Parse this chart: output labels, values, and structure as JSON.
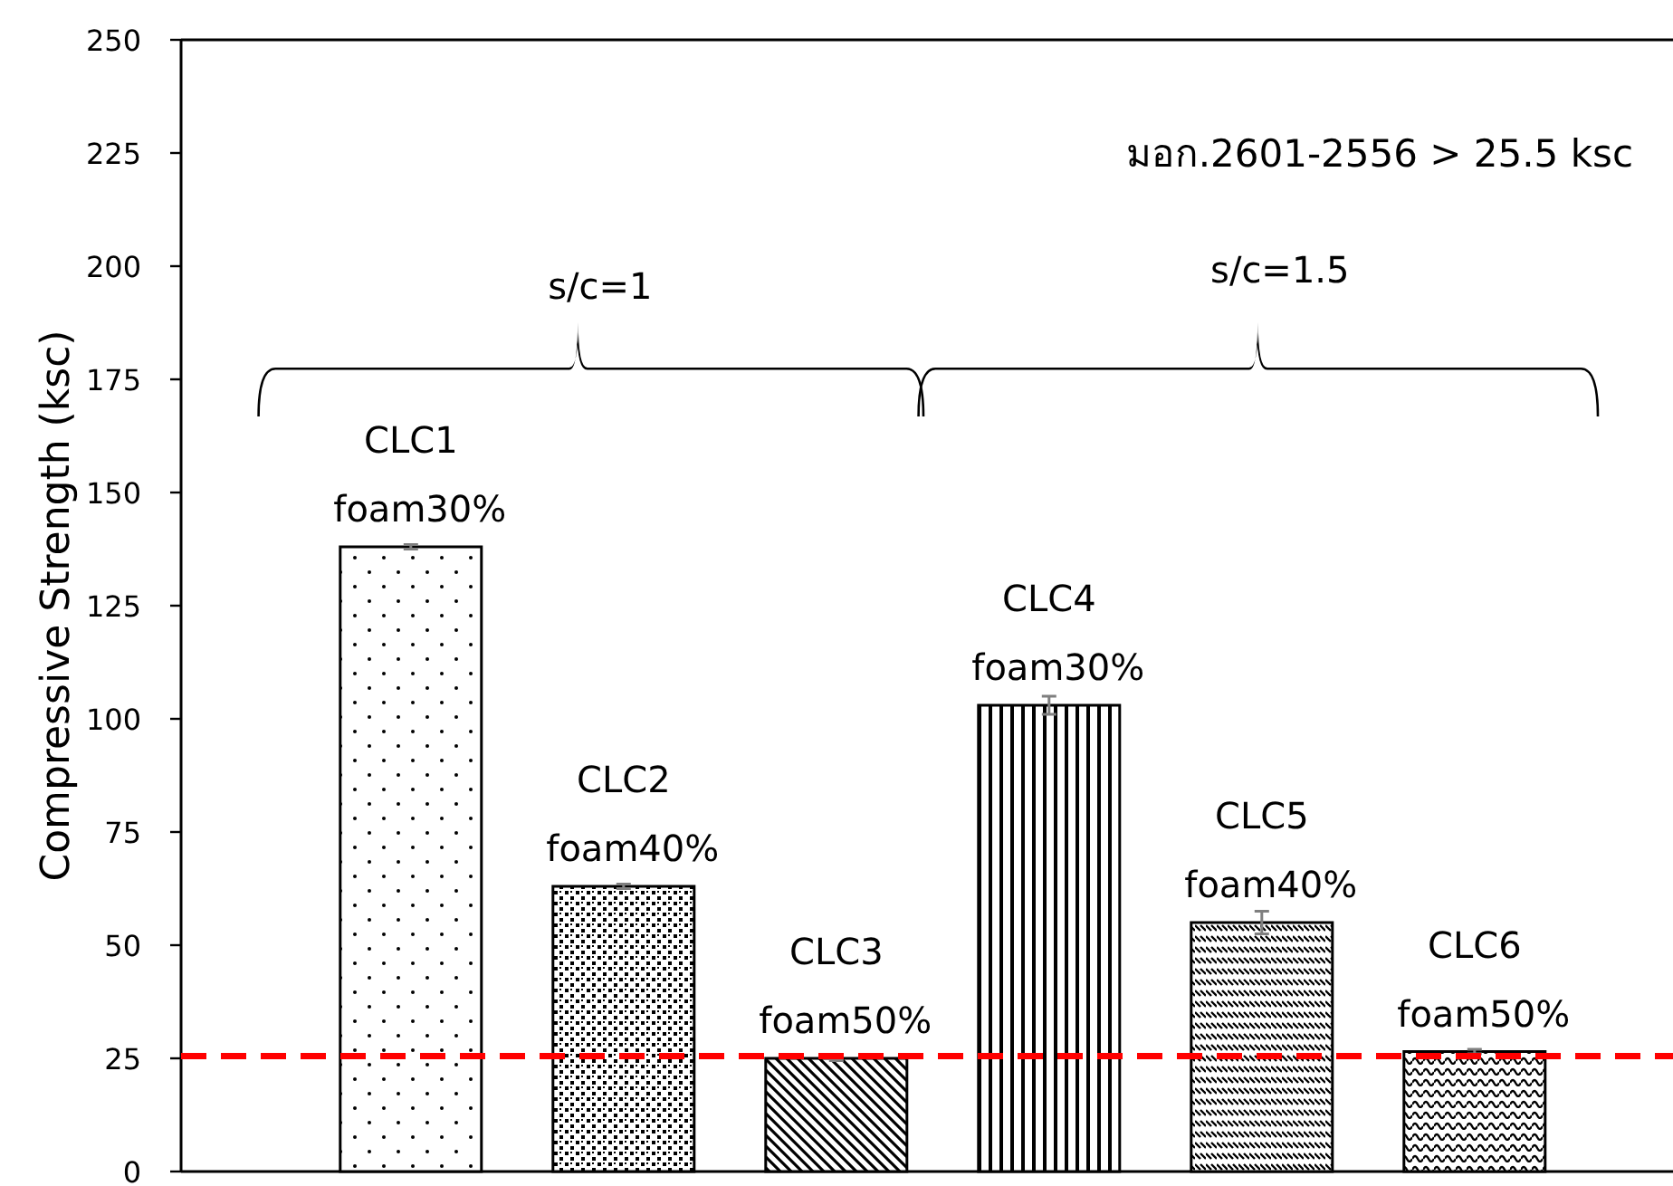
{
  "chart_data": {
    "type": "bar",
    "ylabel": "Compressive Strength (ksc)",
    "categories": [
      "CLC1 foam30%",
      "CLC2 foam40%",
      "CLC3 foam50%",
      "CLC4 foam30%",
      "CLC5 foam40%",
      "CLC6 foam50%"
    ],
    "values": [
      138,
      63,
      25,
      103,
      55,
      26.5
    ],
    "errors": [
      0.5,
      0.5,
      0.5,
      2,
      2.5,
      0.5
    ],
    "colors": [
      "#000000",
      "#000000",
      "#000000",
      "#000000",
      "#000000",
      "#000000"
    ],
    "ylim": [
      0,
      250
    ],
    "yticks": [
      0,
      25,
      50,
      75,
      100,
      125,
      150,
      175,
      200,
      225,
      250
    ],
    "ref_lines": [
      {
        "axis": "y",
        "value": 25.5,
        "color": "#ff0000",
        "line_style": "dashed"
      }
    ],
    "annotations": [
      "มอก.2601-2556 > 25.5 ksc",
      "s/c=1",
      "s/c=1.5"
    ],
    "grid": false
  }
}
